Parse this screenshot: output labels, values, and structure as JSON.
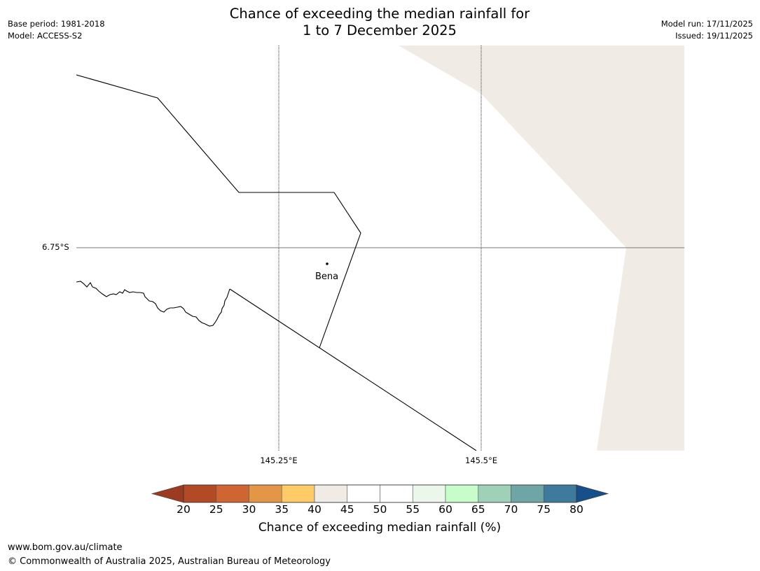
{
  "header": {
    "title_line1": "Chance of exceeding the median rainfall for",
    "title_line2": "1 to 7 December 2025",
    "base_period": "Base period: 1981-2018",
    "model": "Model: ACCESS-S2",
    "model_run": "Model run: 17/11/2025",
    "issued": "Issued: 19/11/2025"
  },
  "map": {
    "latitude_labels": [
      "6.75°S"
    ],
    "longitude_labels": [
      "145.25°E",
      "145.5°E"
    ],
    "places": [
      {
        "name": "Bena"
      }
    ],
    "land_fill_color": "#f0ebe5",
    "background_color": "#ffffff"
  },
  "colorbar": {
    "title": "Chance of exceeding median rainfall (%)",
    "ticks": [
      "20",
      "25",
      "30",
      "35",
      "40",
      "45",
      "50",
      "55",
      "60",
      "65",
      "70",
      "75",
      "80"
    ],
    "under_color": "#9c3a22",
    "over_color": "#16508a",
    "colors": [
      "#b24a26",
      "#cf6531",
      "#e39647",
      "#fecb66",
      "#f0ebe5",
      "#ffffff",
      "#ffffff",
      "#eaf7ea",
      "#c8fcc8",
      "#9fd1b8",
      "#6ea6a6",
      "#3d7a9c"
    ]
  },
  "footer": {
    "url": "www.bom.gov.au/climate",
    "copyright": "© Commonwealth of Australia 2025, Australian Bureau of Meteorology"
  }
}
